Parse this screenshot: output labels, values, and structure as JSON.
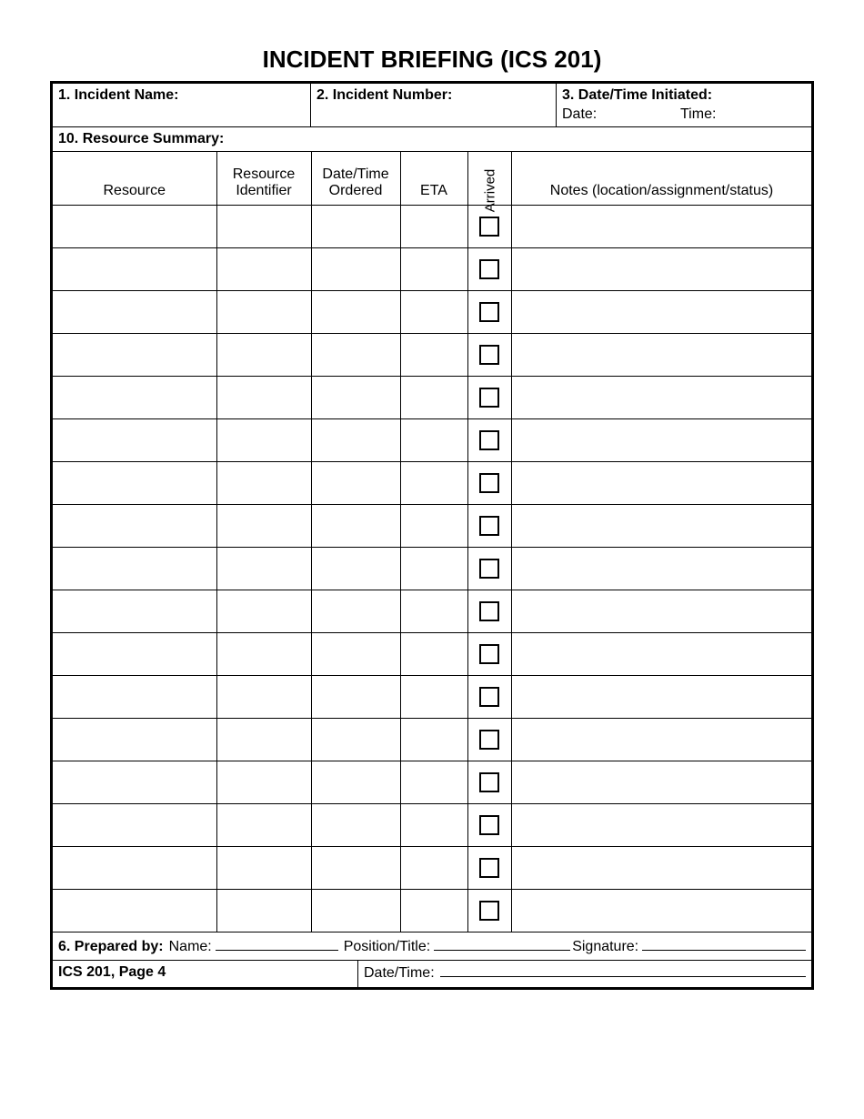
{
  "title": "INCIDENT BRIEFING (ICS 201)",
  "header": {
    "field1_label": "1. Incident Name:",
    "field2_label": "2. Incident Number:",
    "field3_label": "3. Date/Time Initiated:",
    "date_label": "Date:",
    "time_label": "Time:"
  },
  "section10": {
    "label": "10. Resource Summary:",
    "columns": {
      "resource": "Resource",
      "identifier": "Resource Identifier",
      "ordered": "Date/Time Ordered",
      "eta": "ETA",
      "arrived": "Arrived",
      "notes": "Notes (location/assignment/status)"
    },
    "row_count": 17
  },
  "footer": {
    "prepared_label": "6. Prepared by:",
    "name_label": "Name:",
    "position_label": "Position/Title:",
    "signature_label": "Signature:",
    "page_label": "ICS 201, Page 4",
    "datetime_label": "Date/Time:"
  },
  "style": {
    "checkbox_border": "#000000",
    "line_color": "#000000",
    "outer_border_width": 3
  }
}
